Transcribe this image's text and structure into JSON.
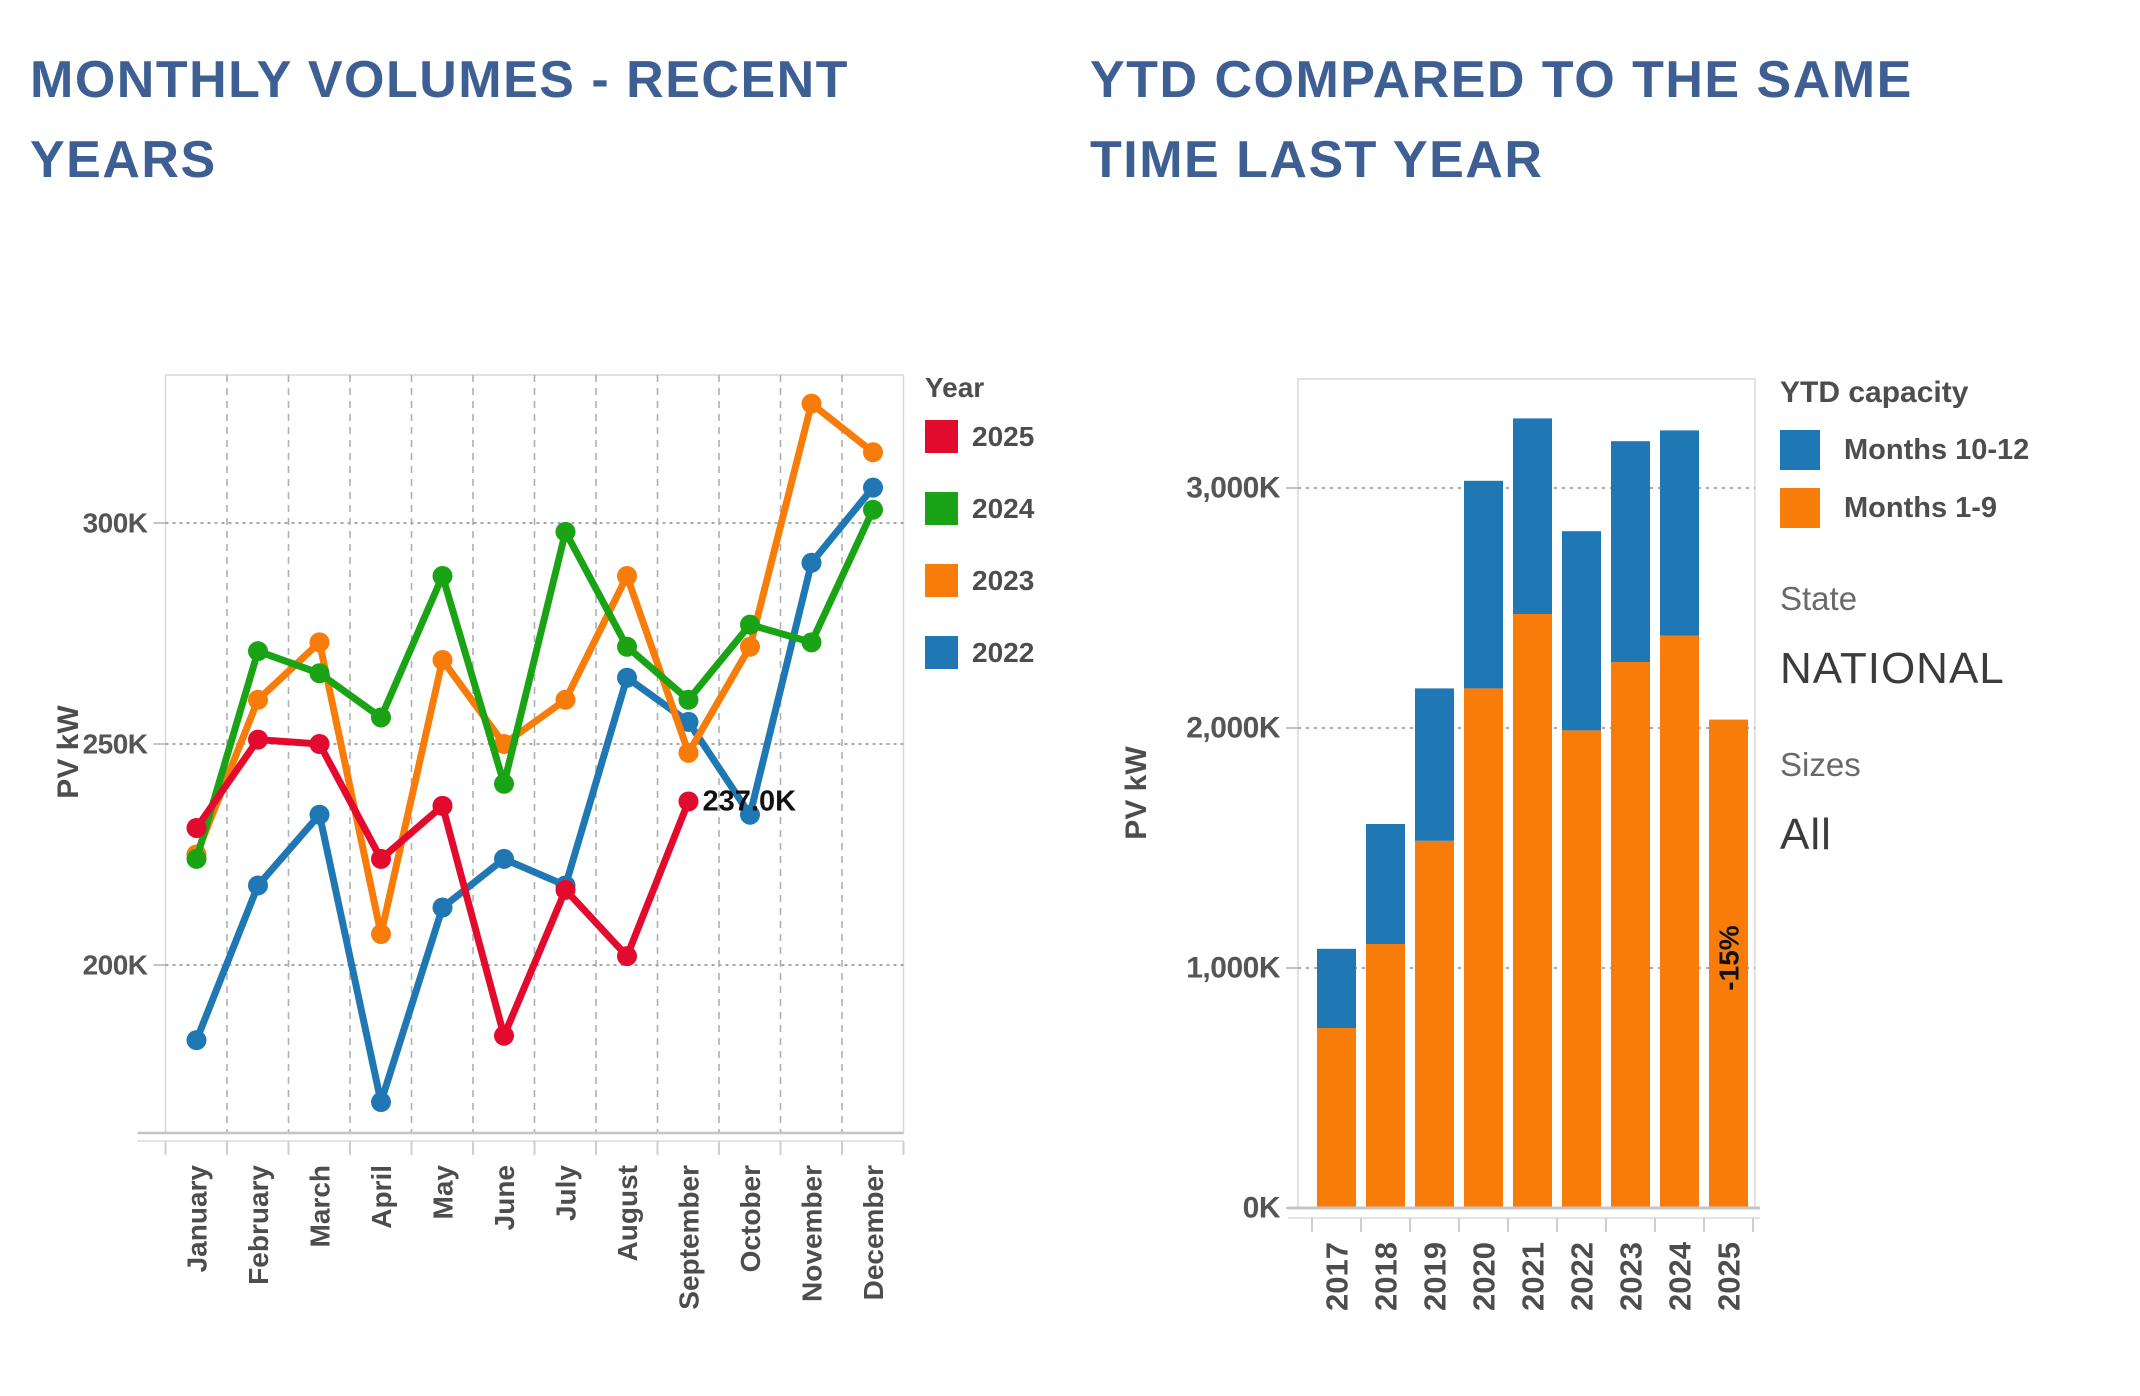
{
  "titles": {
    "left_line1": "MONTHLY VOLUMES - RECENT",
    "left_line2": "YEARS",
    "right_line1": "YTD COMPARED TO THE SAME",
    "right_line2": "TIME LAST YEAR"
  },
  "left_legend": {
    "title": "Year",
    "items": [
      {
        "label": "2025",
        "color": "#e30b2d"
      },
      {
        "label": "2024",
        "color": "#1ba316"
      },
      {
        "label": "2023",
        "color": "#f87c09"
      },
      {
        "label": "2022",
        "color": "#1f77b4"
      }
    ]
  },
  "right_panel": {
    "legend_title": "YTD capacity",
    "items": [
      {
        "label": "Months 10-12",
        "color": "#1f77b4"
      },
      {
        "label": "Months 1-9",
        "color": "#f87c09"
      }
    ],
    "state_label": "State",
    "state_value": "NATIONAL",
    "sizes_label": "Sizes",
    "sizes_value": "All"
  },
  "chart_data": [
    {
      "type": "line",
      "title": "MONTHLY VOLUMES - RECENT YEARS",
      "xlabel": "",
      "ylabel": "PV kW",
      "unit": "K (PV kW, thousands)",
      "grid": true,
      "legend_position": "right",
      "ylim": [
        162,
        334
      ],
      "categories": [
        "January",
        "February",
        "March",
        "April",
        "May",
        "June",
        "July",
        "August",
        "September",
        "October",
        "November",
        "December"
      ],
      "y_ticks": [
        {
          "label": "300K",
          "value": 300
        },
        {
          "label": "250K",
          "value": 250
        },
        {
          "label": "200K",
          "value": 200
        }
      ],
      "series": [
        {
          "name": "2022",
          "color": "#1f77b4",
          "values": [
            183,
            218,
            234,
            169,
            213,
            224,
            218,
            265,
            255,
            234,
            291,
            308
          ]
        },
        {
          "name": "2023",
          "color": "#f87c09",
          "values": [
            225,
            260,
            273,
            207,
            269,
            250,
            260,
            288,
            248,
            272,
            327,
            316
          ]
        },
        {
          "name": "2024",
          "color": "#1ba316",
          "values": [
            224,
            271,
            266,
            256,
            288,
            241,
            298,
            272,
            260,
            277,
            273,
            303
          ]
        },
        {
          "name": "2025",
          "color": "#e30b2d",
          "values": [
            231,
            251,
            250,
            224,
            236,
            184,
            217,
            202,
            237
          ]
        }
      ],
      "annotation": {
        "text": "237.0K",
        "series": "2025",
        "index": 8
      }
    },
    {
      "type": "bar",
      "stacked": true,
      "title": "YTD COMPARED TO THE SAME TIME LAST YEAR",
      "xlabel": "",
      "ylabel": "PV kW",
      "unit": "K (PV kW, thousands)",
      "grid": true,
      "legend_position": "right",
      "ylim": [
        0,
        3450
      ],
      "categories": [
        "2017",
        "2018",
        "2019",
        "2020",
        "2021",
        "2022",
        "2023",
        "2024",
        "2025"
      ],
      "y_ticks": [
        {
          "label": "0K",
          "value": 0
        },
        {
          "label": "1,000K",
          "value": 1000
        },
        {
          "label": "2,000K",
          "value": 2000
        },
        {
          "label": "3,000K",
          "value": 3000
        }
      ],
      "series": [
        {
          "name": "Months 1-9",
          "color": "#f87c09",
          "values": [
            750,
            1100,
            1530,
            2165,
            2475,
            1990,
            2275,
            2385,
            2035
          ]
        },
        {
          "name": "Months 10-12",
          "color": "#1f77b4",
          "values": [
            330,
            500,
            635,
            865,
            815,
            830,
            920,
            855,
            0
          ]
        }
      ],
      "bar_label": {
        "text": "-15%",
        "category": "2025"
      }
    }
  ],
  "style": {
    "title_color": "#3e5f94",
    "tick_color": "#555555",
    "axis_label_color": "#4d4d4d",
    "grid_color": "#a8a8a8",
    "vgrid_color": "#b0b0b0",
    "border_color": "#d8d8d8",
    "axis_line_color": "#c4c4c4",
    "annotation_color": "#111111"
  }
}
